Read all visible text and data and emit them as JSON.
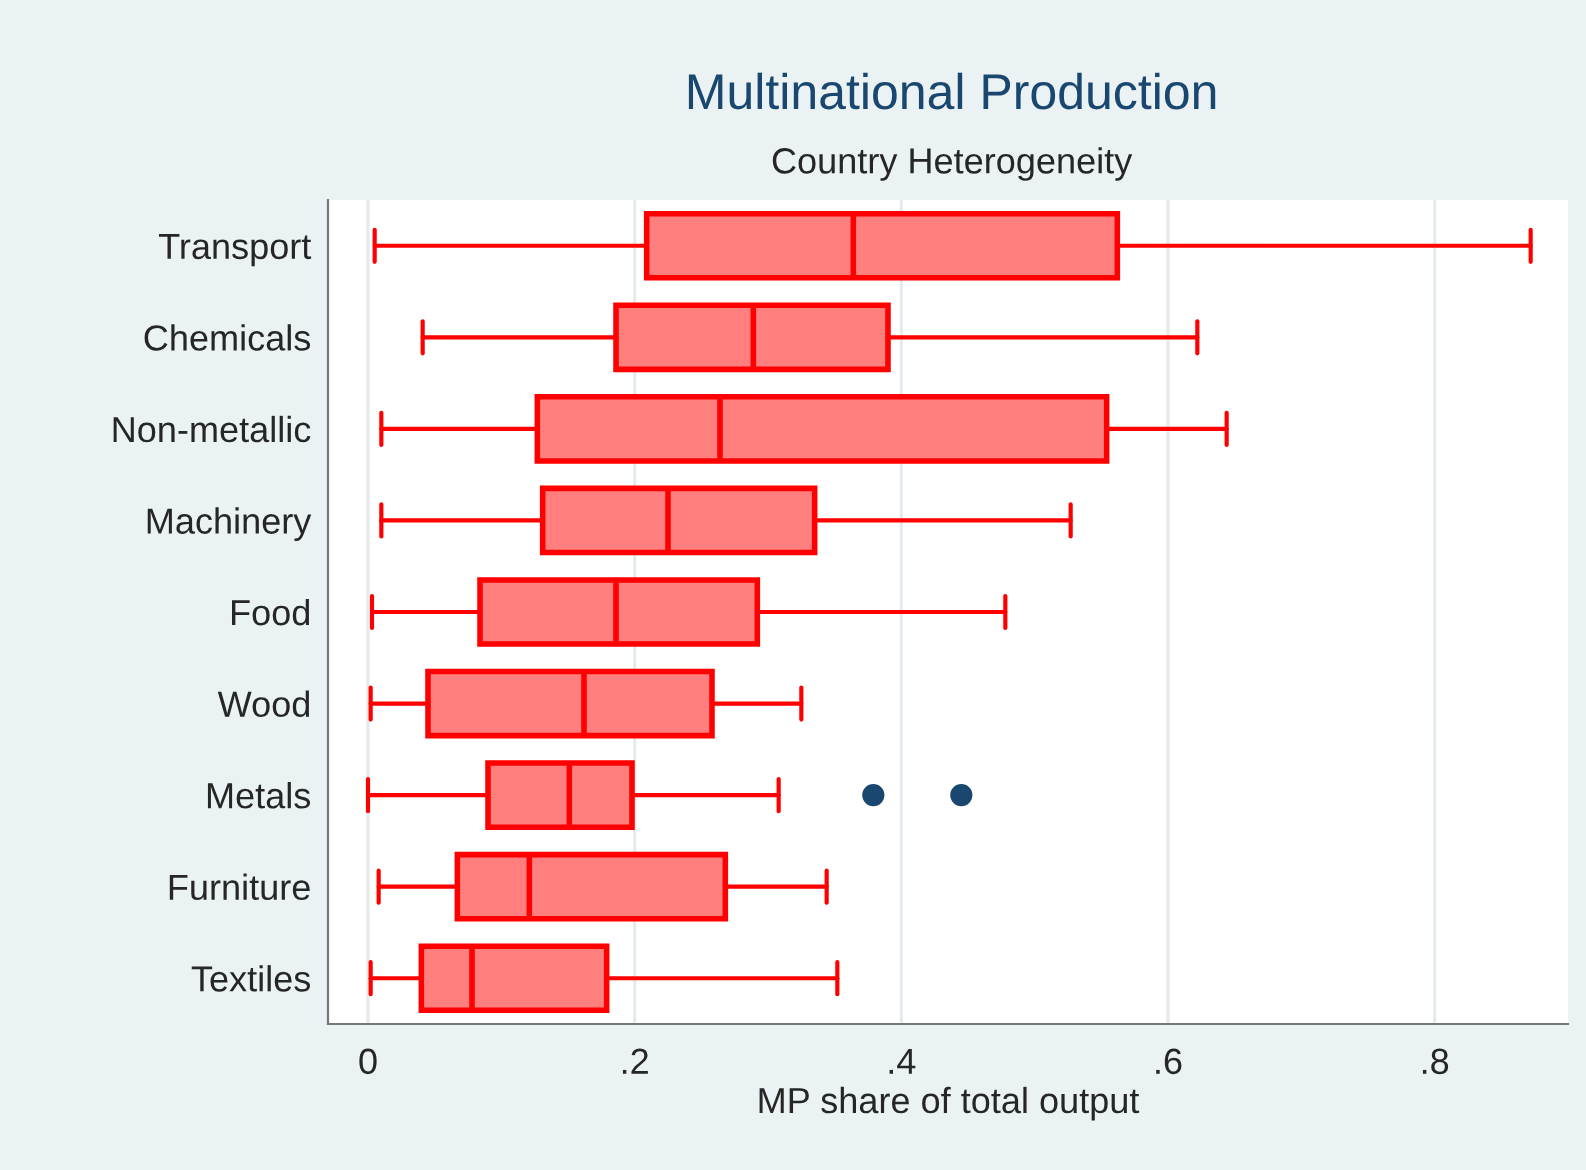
{
  "chart_data": {
    "type": "box",
    "title": "Multinational Production",
    "subtitle": "Country Heterogeneity",
    "xlabel": "MP share of total output",
    "orientation": "horizontal",
    "categories": [
      "Transport",
      "Chemicals",
      "Non-metallic",
      "Machinery",
      "Food",
      "Wood",
      "Metals",
      "Furniture",
      "Textiles"
    ],
    "series": [
      {
        "color": "#ff7f7f",
        "boxes": [
          {
            "low": 0.005,
            "q1": 0.209,
            "median": 0.364,
            "q3": 0.562,
            "high": 0.872
          },
          {
            "low": 0.041,
            "q1": 0.186,
            "median": 0.289,
            "q3": 0.39,
            "high": 0.622
          },
          {
            "low": 0.01,
            "q1": 0.127,
            "median": 0.264,
            "q3": 0.554,
            "high": 0.644
          },
          {
            "low": 0.01,
            "q1": 0.131,
            "median": 0.225,
            "q3": 0.335,
            "high": 0.527
          },
          {
            "low": 0.003,
            "q1": 0.084,
            "median": 0.186,
            "q3": 0.292,
            "high": 0.478
          },
          {
            "low": 0.002,
            "q1": 0.045,
            "median": 0.162,
            "q3": 0.258,
            "high": 0.325
          },
          {
            "low": 0.0,
            "q1": 0.09,
            "median": 0.151,
            "q3": 0.198,
            "high": 0.308,
            "outliers": [
              0.379,
              0.445
            ]
          },
          {
            "low": 0.008,
            "q1": 0.067,
            "median": 0.121,
            "q3": 0.268,
            "high": 0.344
          },
          {
            "low": 0.002,
            "q1": 0.04,
            "median": 0.078,
            "q3": 0.179,
            "high": 0.352
          }
        ]
      }
    ],
    "xlim": [
      -0.03,
      0.9
    ],
    "xticks": [
      0,
      {
        "value": 0.2,
        "label": ".2"
      },
      {
        "value": 0.4,
        "label": ".4"
      },
      {
        "value": 0.6,
        "label": ".6"
      },
      {
        "value": 0.8,
        "label": ".8"
      }
    ],
    "grid": "x",
    "legend": false
  }
}
